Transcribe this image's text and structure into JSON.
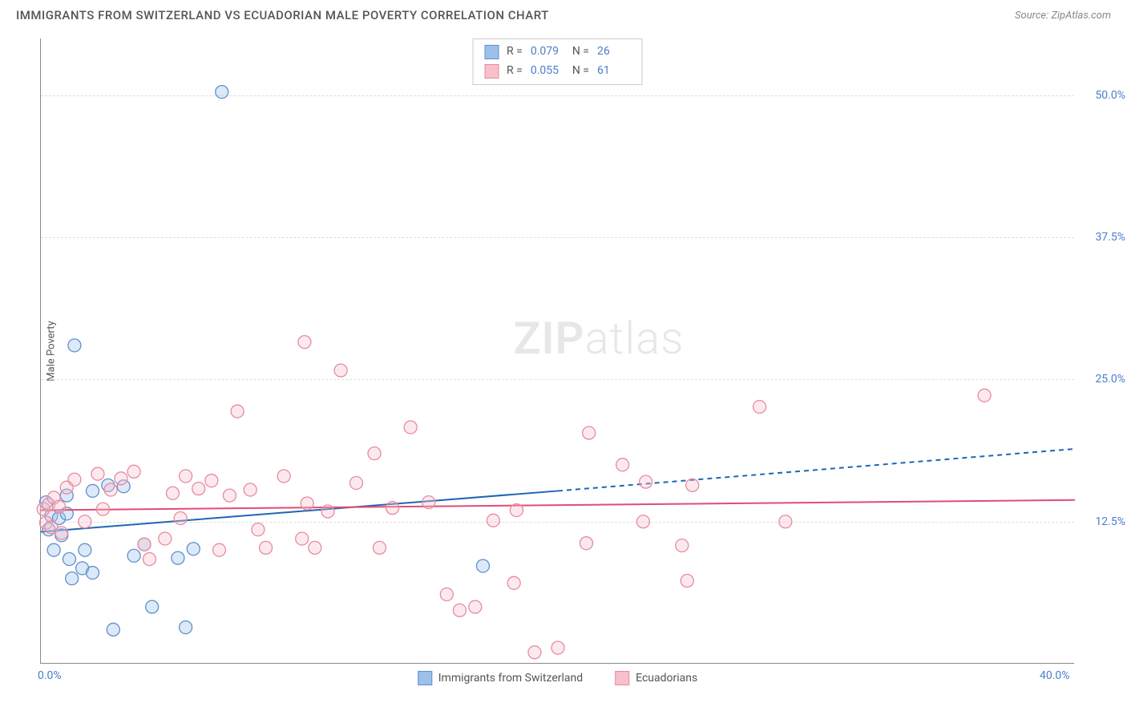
{
  "header": {
    "title": "IMMIGRANTS FROM SWITZERLAND VS ECUADORIAN MALE POVERTY CORRELATION CHART",
    "source_label": "Source:",
    "source_name": "ZipAtlas.com"
  },
  "chart": {
    "type": "scatter",
    "y_axis_label": "Male Poverty",
    "xlim": [
      0,
      40
    ],
    "ylim": [
      0,
      55
    ],
    "x_ticks": [
      {
        "value": 0,
        "label": "0.0%"
      },
      {
        "value": 40,
        "label": "40.0%"
      }
    ],
    "y_ticks": [
      {
        "value": 12.5,
        "label": "12.5%"
      },
      {
        "value": 25.0,
        "label": "25.0%"
      },
      {
        "value": 37.5,
        "label": "37.5%"
      },
      {
        "value": 50.0,
        "label": "50.0%"
      }
    ],
    "background_color": "#ffffff",
    "grid_color": "#dddddd",
    "axis_color": "#888888",
    "tick_label_color": "#4a7ec9",
    "marker_radius": 8,
    "marker_fill_opacity": 0.35,
    "marker_stroke_width": 1.3,
    "watermark": {
      "text_bold": "ZIP",
      "text_light": "atlas",
      "color": "#bbbbbb",
      "fontsize": 56
    },
    "series": [
      {
        "id": "swiss",
        "label": "Immigrants from Switzerland",
        "color_fill": "#9cc0ea",
        "color_stroke": "#5f91cc",
        "R": "0.079",
        "N": "26",
        "regression": {
          "solid": {
            "x1": 0,
            "y1": 11.6,
            "x2": 20,
            "y2": 15.2
          },
          "dashed": {
            "x1": 20,
            "y1": 15.2,
            "x2": 40,
            "y2": 18.9
          },
          "line_color": "#1f66b5",
          "line_width": 2
        },
        "points": [
          [
            0.2,
            14.2
          ],
          [
            0.3,
            11.8
          ],
          [
            0.4,
            13.0
          ],
          [
            0.5,
            10.0
          ],
          [
            0.7,
            12.8
          ],
          [
            0.8,
            11.3
          ],
          [
            1.0,
            13.2
          ],
          [
            1.1,
            9.2
          ],
          [
            1.2,
            7.5
          ],
          [
            1.3,
            28.0
          ],
          [
            1.6,
            8.4
          ],
          [
            1.7,
            10.0
          ],
          [
            2.0,
            8.0
          ],
          [
            2.0,
            15.2
          ],
          [
            2.8,
            3.0
          ],
          [
            3.2,
            15.6
          ],
          [
            3.6,
            9.5
          ],
          [
            4.0,
            10.5
          ],
          [
            4.3,
            5.0
          ],
          [
            5.3,
            9.3
          ],
          [
            5.6,
            3.2
          ],
          [
            5.9,
            10.1
          ],
          [
            7.0,
            50.3
          ],
          [
            17.1,
            8.6
          ],
          [
            2.6,
            15.7
          ],
          [
            1.0,
            14.8
          ]
        ]
      },
      {
        "id": "ecuadorian",
        "label": "Ecuadorians",
        "color_fill": "#f7c0cb",
        "color_stroke": "#e88aa0",
        "R": "0.055",
        "N": "61",
        "regression": {
          "solid": {
            "x1": 0,
            "y1": 13.5,
            "x2": 40,
            "y2": 14.4
          },
          "dashed": null,
          "line_color": "#e24c74",
          "line_width": 2
        },
        "points": [
          [
            0.1,
            13.6
          ],
          [
            0.2,
            12.4
          ],
          [
            0.3,
            14.0
          ],
          [
            0.4,
            12.0
          ],
          [
            0.5,
            14.6
          ],
          [
            0.7,
            13.8
          ],
          [
            0.8,
            11.5
          ],
          [
            1.0,
            15.5
          ],
          [
            1.3,
            16.2
          ],
          [
            1.7,
            12.5
          ],
          [
            2.2,
            16.7
          ],
          [
            2.4,
            13.6
          ],
          [
            2.7,
            15.3
          ],
          [
            3.1,
            16.3
          ],
          [
            3.6,
            16.9
          ],
          [
            4.0,
            10.5
          ],
          [
            4.8,
            11.0
          ],
          [
            5.1,
            15.0
          ],
          [
            5.6,
            16.5
          ],
          [
            6.1,
            15.4
          ],
          [
            6.6,
            16.1
          ],
          [
            6.9,
            10.0
          ],
          [
            7.3,
            14.8
          ],
          [
            7.6,
            22.2
          ],
          [
            8.1,
            15.3
          ],
          [
            8.7,
            10.2
          ],
          [
            9.4,
            16.5
          ],
          [
            10.1,
            11.0
          ],
          [
            10.2,
            28.3
          ],
          [
            10.3,
            14.1
          ],
          [
            10.6,
            10.2
          ],
          [
            11.1,
            13.4
          ],
          [
            11.6,
            25.8
          ],
          [
            12.2,
            15.9
          ],
          [
            12.9,
            18.5
          ],
          [
            13.6,
            13.7
          ],
          [
            14.3,
            20.8
          ],
          [
            15.0,
            14.2
          ],
          [
            15.7,
            6.1
          ],
          [
            16.2,
            4.7
          ],
          [
            16.8,
            5.0
          ],
          [
            17.5,
            12.6
          ],
          [
            18.3,
            7.1
          ],
          [
            18.4,
            13.5
          ],
          [
            19.1,
            1.0
          ],
          [
            20.0,
            1.4
          ],
          [
            21.1,
            10.6
          ],
          [
            21.2,
            20.3
          ],
          [
            22.5,
            17.5
          ],
          [
            23.3,
            12.5
          ],
          [
            23.4,
            16.0
          ],
          [
            24.8,
            10.4
          ],
          [
            25.0,
            7.3
          ],
          [
            25.2,
            15.7
          ],
          [
            27.8,
            22.6
          ],
          [
            28.8,
            12.5
          ],
          [
            36.5,
            23.6
          ],
          [
            4.2,
            9.2
          ],
          [
            5.4,
            12.8
          ],
          [
            8.4,
            11.8
          ],
          [
            13.1,
            10.2
          ]
        ]
      }
    ],
    "legend_bottom": [
      {
        "series": "swiss"
      },
      {
        "series": "ecuadorian"
      }
    ]
  }
}
